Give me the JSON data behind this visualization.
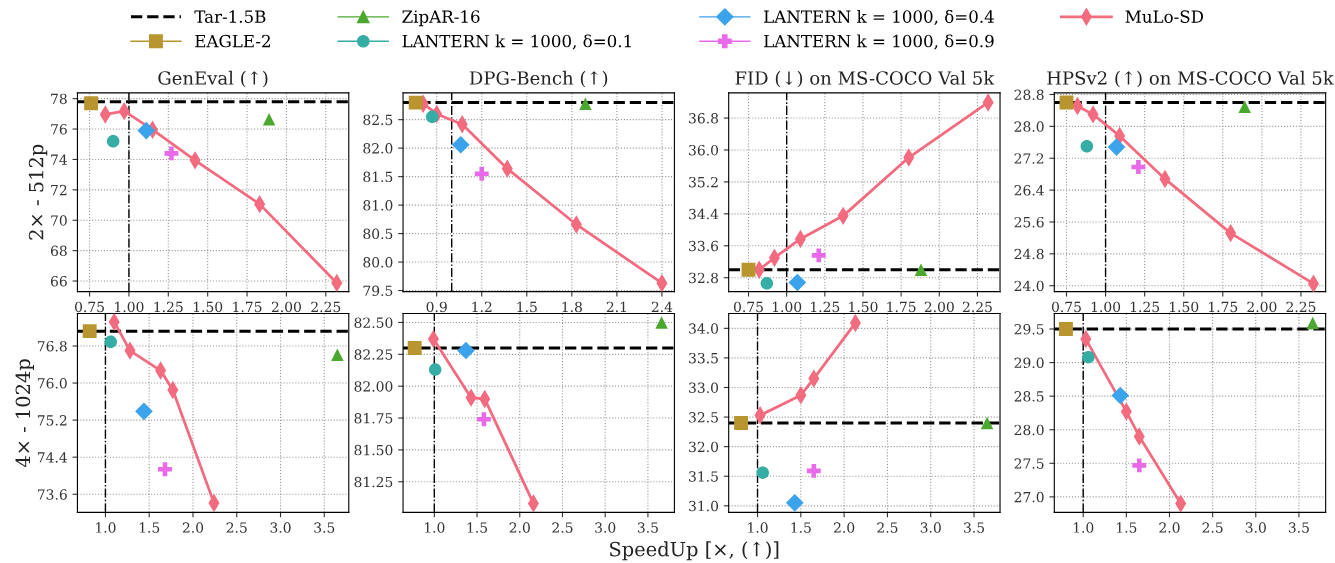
{
  "chart_data": [
    {
      "type": "line",
      "title": "GenEval (↑)",
      "ylabel": "2× - 512p",
      "legend": "top",
      "grid": true,
      "xlim": [
        0.673,
        2.396
      ],
      "ylim": [
        65.3,
        78.38
      ],
      "xticks": [
        {
          "value": 0.75,
          "label": "0.75"
        },
        {
          "value": 1.0,
          "label": "1.00"
        },
        {
          "value": 1.25,
          "label": "1.25"
        },
        {
          "value": 1.5,
          "label": "1.50"
        },
        {
          "value": 1.75,
          "label": "1.75"
        },
        {
          "value": 2.0,
          "label": "2.00"
        },
        {
          "value": 2.25,
          "label": "2.25"
        }
      ],
      "yticks": [
        66,
        68,
        70,
        72,
        74,
        76,
        78
      ],
      "ref_lines": [
        {
          "axis": "y",
          "value": 77.8,
          "label": "Tar-1.5B",
          "color": "#000000",
          "line_style": "dashed"
        },
        {
          "axis": "x",
          "value": 1.0,
          "label": null,
          "color": "#000000",
          "line_style": "dashdot"
        }
      ],
      "series": [
        {
          "name": "EAGLE-2",
          "type": "scatter",
          "marker": "square",
          "color": "#b8952f",
          "x": [
            0.76
          ],
          "values": [
            77.7
          ]
        },
        {
          "name": "ZipAR-16",
          "type": "scatter",
          "marker": "triangle",
          "color": "#4aa82f",
          "x": [
            1.89
          ],
          "values": [
            76.65
          ]
        },
        {
          "name": "LANTERN k = 1000, δ=0.1",
          "type": "scatter",
          "marker": "circle",
          "color": "#36ada4",
          "x": [
            0.9
          ],
          "values": [
            75.2
          ]
        },
        {
          "name": "LANTERN k = 1000, δ=0.4",
          "type": "scatter",
          "marker": "diamond",
          "color": "#3ba3ec",
          "x": [
            1.11
          ],
          "values": [
            75.9
          ]
        },
        {
          "name": "LANTERN k = 1000, δ=0.9",
          "type": "scatter",
          "marker": "cross",
          "color": "#e86ae8",
          "x": [
            1.27
          ],
          "values": [
            74.4
          ]
        },
        {
          "name": "MuLo-SD",
          "marker": "diamond",
          "color": "#f36b7f",
          "x": [
            0.85,
            0.97,
            1.15,
            1.42,
            1.83,
            2.32
          ],
          "values": [
            76.96,
            77.18,
            75.96,
            73.94,
            71.06,
            65.87
          ]
        }
      ]
    },
    {
      "type": "line",
      "title": "DPG-Bench (↑)",
      "grid": true,
      "xlim": [
        0.676,
        2.483
      ],
      "ylim": [
        79.48,
        82.97
      ],
      "xticks": [
        0.9,
        1.2,
        1.5,
        1.8,
        2.1,
        2.4
      ],
      "yticks": [
        79.5,
        {
          "value": 80,
          "label": "80.0"
        },
        80.5,
        {
          "value": 81,
          "label": "81.0"
        },
        81.5,
        {
          "value": 82,
          "label": "82.0"
        },
        82.5
      ],
      "ref_lines": [
        {
          "axis": "y",
          "value": 82.8,
          "label": null,
          "color": "#000000",
          "line_style": "dashed"
        },
        {
          "axis": "x",
          "value": 1.0,
          "label": null,
          "color": "#000000",
          "line_style": "dashdot"
        }
      ],
      "series": [
        {
          "type": "scatter",
          "marker": "square",
          "color": "#b8952f",
          "x": [
            0.76
          ],
          "values": [
            82.8
          ]
        },
        {
          "type": "scatter",
          "marker": "triangle",
          "color": "#4aa82f",
          "x": [
            1.89
          ],
          "values": [
            82.78
          ]
        },
        {
          "type": "scatter",
          "marker": "circle",
          "color": "#36ada4",
          "x": [
            0.87
          ],
          "values": [
            82.55
          ]
        },
        {
          "type": "scatter",
          "marker": "diamond",
          "color": "#3ba3ec",
          "x": [
            1.06
          ],
          "values": [
            82.06
          ]
        },
        {
          "type": "scatter",
          "marker": "cross",
          "color": "#e86ae8",
          "x": [
            1.2
          ],
          "values": [
            81.55
          ]
        },
        {
          "marker": "diamond",
          "color": "#f36b7f",
          "x": [
            0.81,
            0.9,
            1.07,
            1.37,
            1.83,
            2.4
          ],
          "values": [
            82.78,
            82.6,
            82.42,
            81.64,
            80.66,
            79.63
          ]
        }
      ]
    },
    {
      "type": "line",
      "title": "FID (↓) on MS-COCO Val 5k",
      "grid": true,
      "xlim": [
        0.62,
        2.398
      ],
      "ylim": [
        32.45,
        37.43
      ],
      "xticks": [
        {
          "value": 0.75,
          "label": "0.75"
        },
        {
          "value": 1.0,
          "label": "1.00"
        },
        {
          "value": 1.25,
          "label": "1.25"
        },
        {
          "value": 1.5,
          "label": "1.50"
        },
        {
          "value": 1.75,
          "label": "1.75"
        },
        {
          "value": 2.0,
          "label": "2.00"
        },
        {
          "value": 2.25,
          "label": "2.25"
        }
      ],
      "yticks": [
        32.8,
        33.6,
        34.4,
        35.2,
        {
          "value": 36,
          "label": "36.0"
        },
        36.8
      ],
      "ref_lines": [
        {
          "axis": "y",
          "value": 33.0,
          "label": null,
          "color": "#000000",
          "line_style": "dashed"
        },
        {
          "axis": "x",
          "value": 1.0,
          "label": null,
          "color": "#000000",
          "line_style": "dashdot"
        }
      ],
      "series": [
        {
          "type": "scatter",
          "marker": "square",
          "color": "#b8952f",
          "x": [
            0.75
          ],
          "values": [
            33.0
          ]
        },
        {
          "type": "scatter",
          "marker": "triangle",
          "color": "#4aa82f",
          "x": [
            1.88
          ],
          "values": [
            33.0
          ]
        },
        {
          "type": "scatter",
          "marker": "circle",
          "color": "#36ada4",
          "x": [
            0.87
          ],
          "values": [
            32.66
          ]
        },
        {
          "type": "scatter",
          "marker": "diamond",
          "color": "#3ba3ec",
          "x": [
            1.07
          ],
          "values": [
            32.68
          ]
        },
        {
          "type": "scatter",
          "marker": "cross",
          "color": "#e86ae8",
          "x": [
            1.21
          ],
          "values": [
            33.36
          ]
        },
        {
          "marker": "diamond",
          "color": "#f36b7f",
          "x": [
            0.82,
            0.92,
            1.09,
            1.37,
            1.8,
            2.32
          ],
          "values": [
            33.0,
            33.3,
            33.77,
            34.35,
            35.81,
            37.19
          ]
        }
      ]
    },
    {
      "type": "line",
      "title": "HPSv2 (↑) on MS-COCO Val 5k",
      "grid": true,
      "xlim": [
        0.672,
        2.408
      ],
      "ylim": [
        23.85,
        28.84
      ],
      "xticks": [
        {
          "value": 0.75,
          "label": "0.75"
        },
        {
          "value": 1.0,
          "label": "1.00"
        },
        {
          "value": 1.25,
          "label": "1.25"
        },
        {
          "value": 1.5,
          "label": "1.50"
        },
        {
          "value": 1.75,
          "label": "1.75"
        },
        {
          "value": 2.0,
          "label": "2.00"
        },
        {
          "value": 2.25,
          "label": "2.25"
        }
      ],
      "yticks": [
        {
          "value": 24,
          "label": "24.0"
        },
        24.8,
        25.6,
        26.4,
        27.2,
        {
          "value": 28,
          "label": "28.0"
        },
        28.8
      ],
      "ref_lines": [
        {
          "axis": "y",
          "value": 28.6,
          "label": null,
          "color": "#000000",
          "line_style": "dashed"
        },
        {
          "axis": "x",
          "value": 1.0,
          "label": null,
          "color": "#000000",
          "line_style": "dashdot"
        }
      ],
      "series": [
        {
          "type": "scatter",
          "marker": "square",
          "color": "#b8952f",
          "x": [
            0.75
          ],
          "values": [
            28.6
          ]
        },
        {
          "type": "scatter",
          "marker": "triangle",
          "color": "#4aa82f",
          "x": [
            1.89
          ],
          "values": [
            28.49
          ]
        },
        {
          "type": "scatter",
          "marker": "circle",
          "color": "#36ada4",
          "x": [
            0.88
          ],
          "values": [
            27.5
          ]
        },
        {
          "type": "scatter",
          "marker": "diamond",
          "color": "#3ba3ec",
          "x": [
            1.07
          ],
          "values": [
            27.48
          ]
        },
        {
          "type": "scatter",
          "marker": "cross",
          "color": "#e86ae8",
          "x": [
            1.21
          ],
          "values": [
            26.98
          ]
        },
        {
          "marker": "diamond",
          "color": "#f36b7f",
          "x": [
            0.82,
            0.92,
            1.09,
            1.38,
            1.8,
            2.33
          ],
          "values": [
            28.51,
            28.3,
            27.76,
            26.68,
            25.32,
            24.05
          ]
        }
      ]
    },
    {
      "type": "line",
      "ylabel": "4× - 1024p",
      "grid": true,
      "xlim": [
        0.68,
        3.78
      ],
      "ylim": [
        73.21,
        77.5
      ],
      "xticks": [
        {
          "value": 1,
          "label": "1.0"
        },
        1.5,
        {
          "value": 2,
          "label": "2.0"
        },
        2.5,
        {
          "value": 3,
          "label": "3.0"
        },
        3.5
      ],
      "yticks": [
        73.6,
        74.4,
        75.2,
        {
          "value": 76,
          "label": "76.0"
        },
        76.8
      ],
      "ref_lines": [
        {
          "axis": "y",
          "value": 77.12,
          "label": null,
          "color": "#000000",
          "line_style": "dashed"
        },
        {
          "axis": "x",
          "value": 1.0,
          "label": null,
          "color": "#000000",
          "line_style": "dashdot"
        }
      ],
      "series": [
        {
          "type": "scatter",
          "marker": "square",
          "color": "#b8952f",
          "x": [
            0.82
          ],
          "values": [
            77.12
          ]
        },
        {
          "type": "scatter",
          "marker": "triangle",
          "color": "#4aa82f",
          "x": [
            3.65
          ],
          "values": [
            76.61
          ]
        },
        {
          "type": "scatter",
          "marker": "circle",
          "color": "#36ada4",
          "x": [
            1.06
          ],
          "values": [
            76.89
          ]
        },
        {
          "type": "scatter",
          "marker": "diamond",
          "color": "#3ba3ec",
          "x": [
            1.44
          ],
          "values": [
            75.39
          ]
        },
        {
          "type": "scatter",
          "marker": "cross",
          "color": "#e86ae8",
          "x": [
            1.68
          ],
          "values": [
            74.14
          ]
        },
        {
          "marker": "diamond",
          "color": "#f36b7f",
          "x": [
            1.1,
            1.28,
            1.63,
            1.77,
            2.24
          ],
          "values": [
            77.32,
            76.7,
            76.27,
            75.85,
            73.41
          ]
        }
      ]
    },
    {
      "type": "line",
      "xlabel": "SpeedUp [×, (↑)]",
      "grid": true,
      "xlim": [
        0.634,
        3.81
      ],
      "ylim": [
        81.01,
        82.57
      ],
      "xticks": [
        {
          "value": 1,
          "label": "1.0"
        },
        1.5,
        {
          "value": 2,
          "label": "2.0"
        },
        2.5,
        {
          "value": 3,
          "label": "3.0"
        },
        3.5
      ],
      "yticks": [
        81.25,
        {
          "value": 81.5,
          "label": "81.50"
        },
        81.75,
        {
          "value": 82,
          "label": "82.00"
        },
        82.25,
        {
          "value": 82.5,
          "label": "82.50"
        }
      ],
      "ref_lines": [
        {
          "axis": "y",
          "value": 82.3,
          "label": null,
          "color": "#000000",
          "line_style": "dashed"
        },
        {
          "axis": "x",
          "value": 1.0,
          "label": null,
          "color": "#000000",
          "line_style": "dashdot"
        }
      ],
      "series": [
        {
          "type": "scatter",
          "marker": "square",
          "color": "#b8952f",
          "x": [
            0.77
          ],
          "values": [
            82.3
          ]
        },
        {
          "type": "scatter",
          "marker": "triangle",
          "color": "#4aa82f",
          "x": [
            3.66
          ],
          "values": [
            82.5
          ]
        },
        {
          "type": "scatter",
          "marker": "circle",
          "color": "#36ada4",
          "x": [
            1.01
          ],
          "values": [
            82.13
          ]
        },
        {
          "type": "scatter",
          "marker": "diamond",
          "color": "#3ba3ec",
          "x": [
            1.37
          ],
          "values": [
            82.28
          ]
        },
        {
          "type": "scatter",
          "marker": "cross",
          "color": "#e86ae8",
          "x": [
            1.58
          ],
          "values": [
            81.74
          ]
        },
        {
          "marker": "diamond",
          "color": "#f36b7f",
          "x": [
            0.99,
            1.43,
            1.59,
            2.16
          ],
          "values": [
            82.37,
            81.91,
            81.9,
            81.08
          ]
        }
      ]
    },
    {
      "type": "line",
      "grid": true,
      "xlim": [
        0.667,
        3.8
      ],
      "ylim": [
        30.89,
        34.25
      ],
      "xticks": [
        {
          "value": 1,
          "label": "1.0"
        },
        1.5,
        {
          "value": 2,
          "label": "2.0"
        },
        2.5,
        {
          "value": 3,
          "label": "3.0"
        },
        3.5
      ],
      "yticks": [
        {
          "value": 31,
          "label": "31.0"
        },
        31.5,
        {
          "value": 32,
          "label": "32.0"
        },
        32.5,
        {
          "value": 33,
          "label": "33.0"
        },
        33.5,
        {
          "value": 34,
          "label": "34.0"
        }
      ],
      "ref_lines": [
        {
          "axis": "y",
          "value": 32.4,
          "label": null,
          "color": "#000000",
          "line_style": "dashed"
        },
        {
          "axis": "x",
          "value": 1.0,
          "label": null,
          "color": "#000000",
          "line_style": "dashdot"
        }
      ],
      "series": [
        {
          "type": "scatter",
          "marker": "square",
          "color": "#b8952f",
          "x": [
            0.81
          ],
          "values": [
            32.4
          ]
        },
        {
          "type": "scatter",
          "marker": "triangle",
          "color": "#4aa82f",
          "x": [
            3.65
          ],
          "values": [
            32.4
          ]
        },
        {
          "type": "scatter",
          "marker": "circle",
          "color": "#36ada4",
          "x": [
            1.06
          ],
          "values": [
            31.56
          ]
        },
        {
          "type": "scatter",
          "marker": "diamond",
          "color": "#3ba3ec",
          "x": [
            1.43
          ],
          "values": [
            31.05
          ]
        },
        {
          "type": "scatter",
          "marker": "cross",
          "color": "#e86ae8",
          "x": [
            1.65
          ],
          "values": [
            31.59
          ]
        },
        {
          "marker": "diamond",
          "color": "#f36b7f",
          "x": [
            1.03,
            1.5,
            1.65,
            2.13
          ],
          "values": [
            32.53,
            32.87,
            33.15,
            34.09
          ]
        }
      ]
    },
    {
      "type": "line",
      "grid": true,
      "xlim": [
        0.665,
        3.81
      ],
      "ylim": [
        26.77,
        29.73
      ],
      "xticks": [
        {
          "value": 1,
          "label": "1.0"
        },
        1.5,
        {
          "value": 2,
          "label": "2.0"
        },
        2.5,
        {
          "value": 3,
          "label": "3.0"
        },
        3.5
      ],
      "yticks": [
        {
          "value": 27,
          "label": "27.0"
        },
        27.5,
        {
          "value": 28,
          "label": "28.0"
        },
        28.5,
        {
          "value": 29,
          "label": "29.0"
        },
        29.5
      ],
      "ref_lines": [
        {
          "axis": "y",
          "value": 29.5,
          "label": null,
          "color": "#000000",
          "line_style": "dashed"
        },
        {
          "axis": "x",
          "value": 1.0,
          "label": null,
          "color": "#000000",
          "line_style": "dashdot"
        }
      ],
      "series": [
        {
          "type": "scatter",
          "marker": "square",
          "color": "#b8952f",
          "x": [
            0.8
          ],
          "values": [
            29.5
          ]
        },
        {
          "type": "scatter",
          "marker": "triangle",
          "color": "#4aa82f",
          "x": [
            3.66
          ],
          "values": [
            29.59
          ]
        },
        {
          "type": "scatter",
          "marker": "circle",
          "color": "#36ada4",
          "x": [
            1.06
          ],
          "values": [
            29.08
          ]
        },
        {
          "type": "scatter",
          "marker": "diamond",
          "color": "#3ba3ec",
          "x": [
            1.43
          ],
          "values": [
            28.51
          ]
        },
        {
          "type": "scatter",
          "marker": "cross",
          "color": "#e86ae8",
          "x": [
            1.65
          ],
          "values": [
            27.47
          ]
        },
        {
          "marker": "diamond",
          "color": "#f36b7f",
          "x": [
            1.03,
            1.5,
            1.65,
            2.13
          ],
          "values": [
            29.35,
            28.27,
            27.9,
            26.9
          ]
        }
      ]
    }
  ]
}
